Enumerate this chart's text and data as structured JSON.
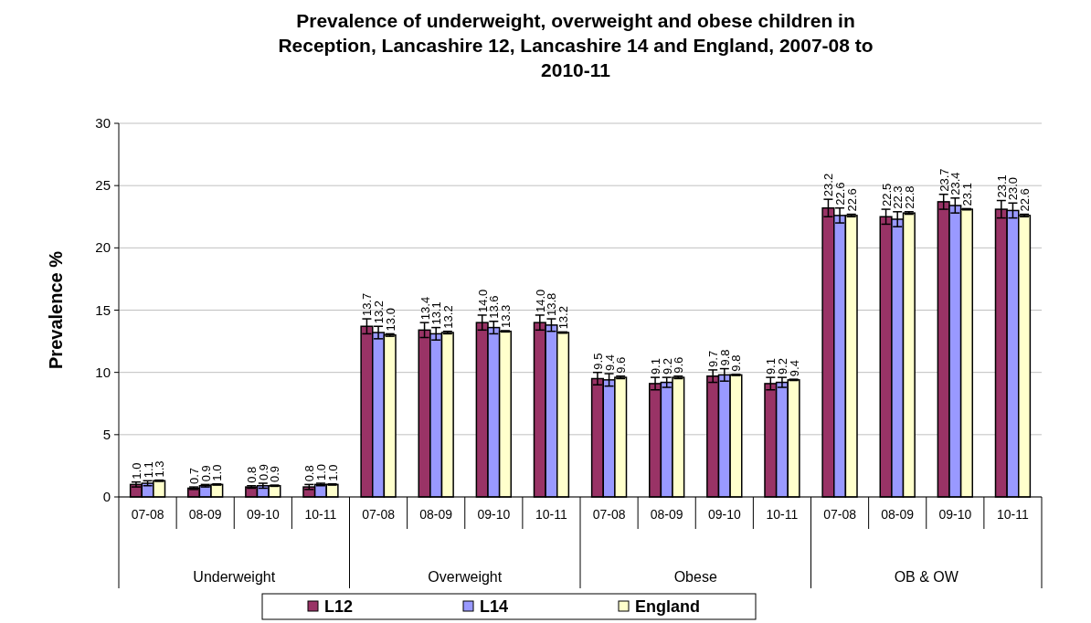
{
  "chart_data": {
    "type": "bar",
    "title": "Prevalence of underweight, overweight and obese children in Reception, Lancashire 12, Lancashire 14 and England, 2007-08 to 2010-11",
    "ylabel": "Prevalence %",
    "categories": [
      "07-08",
      "08-09",
      "09-10",
      "10-11",
      "07-08",
      "08-09",
      "09-10",
      "10-11",
      "07-08",
      "08-09",
      "09-10",
      "10-11",
      "07-08",
      "08-09",
      "09-10",
      "10-11"
    ],
    "annotations": [
      "Underweight",
      "Overweight",
      "Obese",
      "OB & OW"
    ],
    "series": [
      {
        "name": "L12",
        "color": "#993366",
        "values": [
          1.0,
          0.7,
          0.8,
          0.8,
          13.7,
          13.4,
          14.0,
          14.0,
          9.5,
          9.1,
          9.7,
          9.1,
          23.2,
          22.5,
          23.7,
          23.1
        ],
        "errors": [
          0.2,
          0.1,
          0.1,
          0.2,
          0.6,
          0.6,
          0.6,
          0.6,
          0.5,
          0.5,
          0.5,
          0.5,
          0.7,
          0.6,
          0.6,
          0.7
        ],
        "value_labels": [
          "1.0",
          "0.7",
          "0.8",
          "0.8",
          "13.7",
          "13.4",
          "14.0",
          "14.0",
          "9.5",
          "9.1",
          "9.7",
          "9.1",
          "23.2",
          "22.5",
          "23.7",
          "23.1"
        ]
      },
      {
        "name": "L14",
        "color": "#9999ff",
        "values": [
          1.1,
          0.9,
          0.9,
          1.0,
          13.2,
          13.1,
          13.6,
          13.8,
          9.4,
          9.2,
          9.8,
          9.2,
          22.6,
          22.3,
          23.4,
          23.0
        ],
        "errors": [
          0.2,
          0.1,
          0.2,
          0.1,
          0.5,
          0.5,
          0.5,
          0.5,
          0.5,
          0.4,
          0.5,
          0.4,
          0.6,
          0.6,
          0.6,
          0.6
        ],
        "value_labels": [
          "1.1",
          "0.9",
          "0.9",
          "1.0",
          "13.2",
          "13.1",
          "13.6",
          "13.8",
          "9.4",
          "9.2",
          "9.8",
          "9.2",
          "22.6",
          "22.3",
          "23.4",
          "23.0"
        ]
      },
      {
        "name": "England",
        "color": "#ffffcc",
        "values": [
          1.3,
          1.0,
          0.9,
          1.0,
          13.0,
          13.2,
          13.3,
          13.2,
          9.6,
          9.6,
          9.8,
          9.4,
          22.6,
          22.8,
          23.1,
          22.6
        ],
        "errors": [
          0.05,
          0.05,
          0.05,
          0.05,
          0.1,
          0.1,
          0.05,
          0.05,
          0.1,
          0.1,
          0.05,
          0.05,
          0.1,
          0.1,
          0.05,
          0.1
        ],
        "value_labels": [
          "1.3",
          "1.0",
          "0.9",
          "1.0",
          "13.0",
          "13.2",
          "13.3",
          "13.2",
          "9.6",
          "9.6",
          "9.8",
          "9.4",
          "22.6",
          "22.8",
          "23.1",
          "22.6"
        ]
      }
    ],
    "ylim": [
      0,
      30
    ],
    "yticks": [
      0,
      5,
      10,
      15,
      20,
      25,
      30
    ],
    "grid": "y",
    "legend": "bottom"
  }
}
